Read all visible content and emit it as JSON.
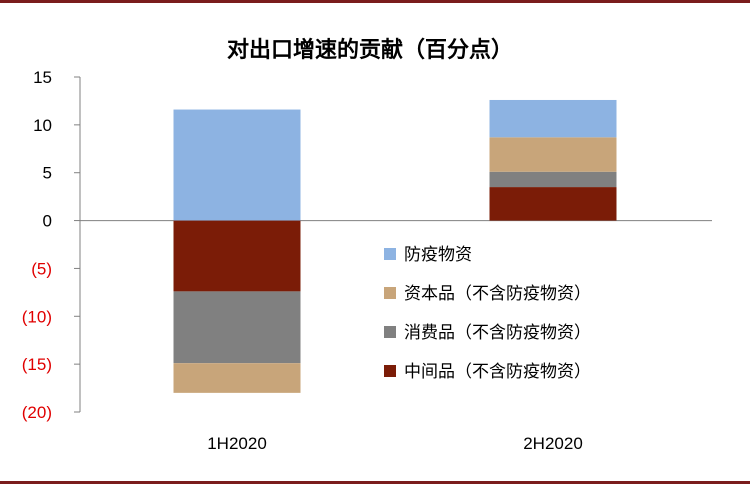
{
  "chart_data": {
    "type": "bar",
    "stacked": true,
    "title": "对出口增速的贡献（百分点）",
    "categories": [
      "1H2020",
      "2H2020"
    ],
    "ylim": [
      -20,
      15
    ],
    "yticks": [
      15,
      10,
      5,
      0,
      -5,
      -10,
      -15,
      -20
    ],
    "ytick_labels": [
      "15",
      "10",
      "5",
      "0",
      "(5)",
      "(10)",
      "(15)",
      "(20)"
    ],
    "negative_label_color": "#e00000",
    "grid": false,
    "legend_position": "center-right",
    "series": [
      {
        "name": "防疫物资",
        "color": "#8db3e2",
        "values": [
          11.6,
          3.9
        ]
      },
      {
        "name": "资本品（不含防疫物资）",
        "color": "#c8a57a",
        "values": [
          -3.1,
          3.6
        ]
      },
      {
        "name": "消费品（不含防疫物资）",
        "color": "#808080",
        "values": [
          -7.5,
          1.6
        ]
      },
      {
        "name": "中间品（不含防疫物资）",
        "color": "#7b1c07",
        "values": [
          -7.4,
          3.5
        ]
      }
    ],
    "stack_order_positive": [
      3,
      2,
      1,
      0
    ],
    "stack_order_negative": [
      3,
      2,
      1,
      0
    ]
  }
}
